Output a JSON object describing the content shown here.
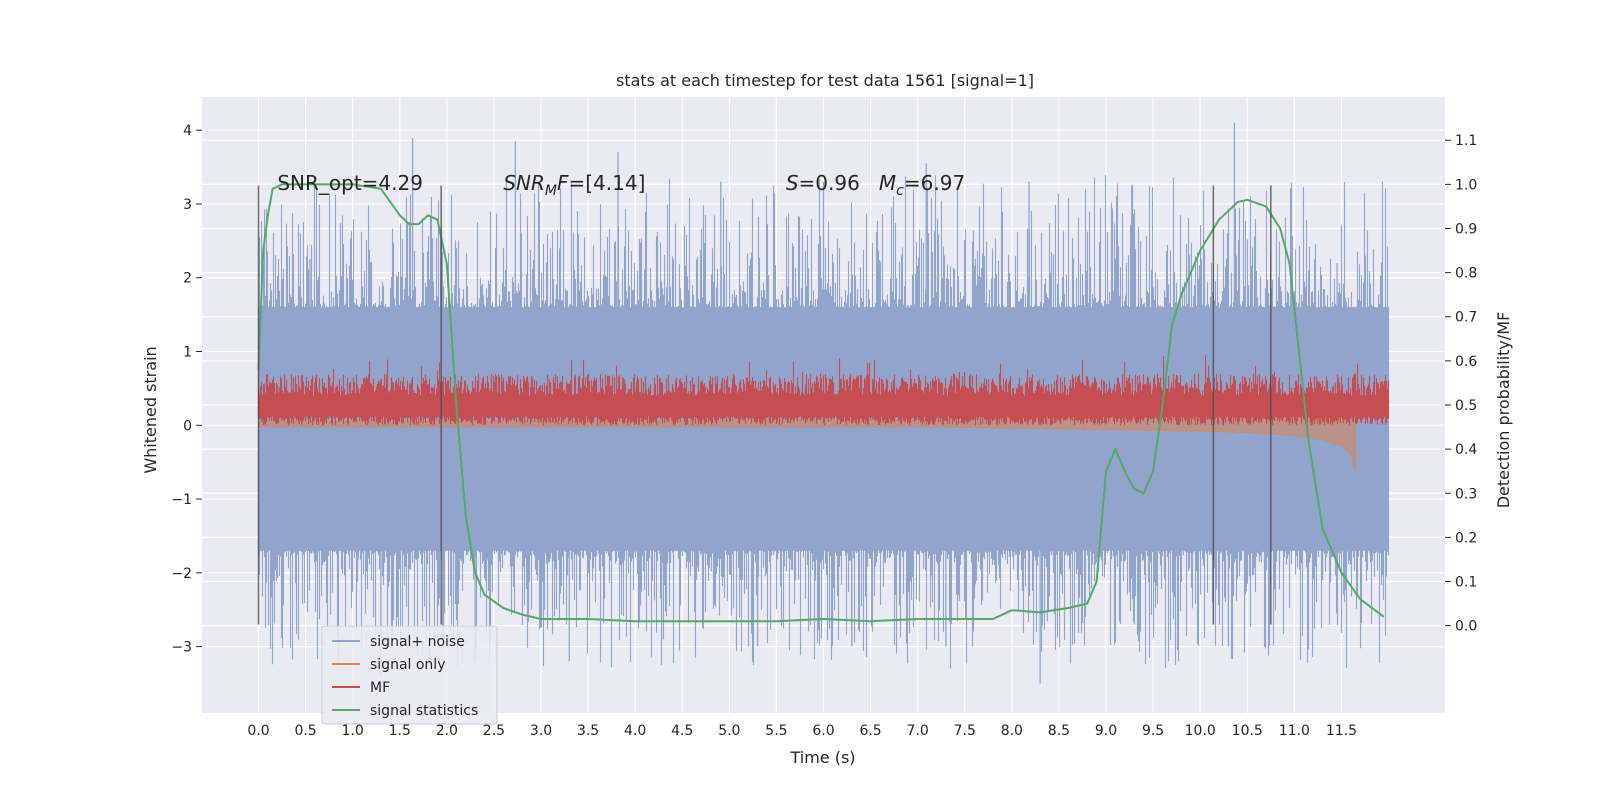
{
  "chart_data": {
    "type": "line",
    "title": "stats at each timestep for test data 1561 [signal=1]",
    "xlabel": "Time (s)",
    "ylabel": "Whitened strain",
    "y2label": "Detection probability/MF",
    "xlim": [
      -0.6,
      12.6
    ],
    "ylim": [
      -3.9,
      4.45
    ],
    "y2lim": [
      -0.198,
      1.198
    ],
    "x_ticks": [
      0.0,
      0.5,
      1.0,
      1.5,
      2.0,
      2.5,
      3.0,
      3.5,
      4.0,
      4.5,
      5.0,
      5.5,
      6.0,
      6.5,
      7.0,
      7.5,
      8.0,
      8.5,
      9.0,
      9.5,
      10.0,
      10.5,
      11.0,
      11.5
    ],
    "x_tick_labels": [
      "0.0",
      "0.5",
      "1.0",
      "1.5",
      "2.0",
      "2.5",
      "3.0",
      "3.5",
      "4.0",
      "4.5",
      "5.0",
      "5.5",
      "6.0",
      "6.5",
      "7.0",
      "7.5",
      "8.0",
      "8.5",
      "9.0",
      "9.5",
      "10.0",
      "10.5",
      "11.0",
      "11.5"
    ],
    "y_ticks": [
      -3,
      -2,
      -1,
      0,
      1,
      2,
      3,
      4
    ],
    "y_tick_labels": [
      "−3",
      "−2",
      "−1",
      "0",
      "1",
      "2",
      "3",
      "4"
    ],
    "y2_ticks": [
      0.0,
      0.1,
      0.2,
      0.3,
      0.4,
      0.5,
      0.6,
      0.7,
      0.8,
      0.9,
      1.0,
      1.1
    ],
    "y2_tick_labels": [
      "0.0",
      "0.1",
      "0.2",
      "0.3",
      "0.4",
      "0.5",
      "0.6",
      "0.7",
      "0.8",
      "0.9",
      "1.0",
      "1.1"
    ],
    "grid": true,
    "legend_position": "lower-left",
    "annotations": [
      {
        "text": "SNR_opt=4.29",
        "x": 0.2,
        "y": 3.3
      },
      {
        "text": "SNR_MF=[4.14]",
        "x": 2.6,
        "y": 3.3
      },
      {
        "text": "S=0.96   M_c=6.97",
        "x": 5.6,
        "y": 3.3
      }
    ],
    "vertical_lines": [
      {
        "x": 0.0,
        "y_range": [
          -2.7,
          3.25
        ]
      },
      {
        "x": 1.94,
        "y_range": [
          -2.7,
          3.25
        ]
      },
      {
        "x": 10.14,
        "y_range": [
          -2.7,
          3.25
        ]
      },
      {
        "x": 10.75,
        "y_range": [
          -2.7,
          3.25
        ]
      }
    ],
    "series": [
      {
        "name": "signal+ noise",
        "color": "#91a5cc",
        "axis": "left",
        "x_range": [
          0.0,
          12.0
        ],
        "envelope_upper": 1.6,
        "envelope_lower": -1.7,
        "peak_upper": [
          2.25,
          3.9,
          3.85,
          3.7,
          3.3,
          3.3,
          3.55,
          3.3,
          3.25,
          4.1,
          2.2
        ],
        "peak_lower": [
          -1.7,
          -3.4,
          -3.2,
          -3.2,
          -2.9,
          -3.0,
          -3.0,
          -3.0,
          -3.5,
          -2.7,
          -3.0,
          -2.1
        ]
      },
      {
        "name": "signal only",
        "color": "#dd8452",
        "axis": "left",
        "x": [
          0.0,
          7.0,
          8.0,
          9.0,
          10.0,
          10.5,
          11.0,
          11.3,
          11.5,
          11.6,
          11.65
        ],
        "upper": [
          0.05,
          0.08,
          0.1,
          0.12,
          0.15,
          0.18,
          0.22,
          0.28,
          0.35,
          0.45,
          0.05
        ],
        "lower": [
          -0.02,
          -0.02,
          -0.04,
          -0.06,
          -0.08,
          -0.1,
          -0.14,
          -0.2,
          -0.28,
          -0.4,
          -0.62
        ]
      },
      {
        "name": "MF",
        "color": "#c44e52",
        "axis": "left",
        "x_range": [
          0.0,
          12.0
        ],
        "baseline": 0.25,
        "envelope_upper": 0.55,
        "envelope_lower": 0.0,
        "peak_upper": 0.95
      },
      {
        "name": "signal statistics",
        "color": "#55a868",
        "axis": "right",
        "x": [
          0.0,
          0.05,
          0.1,
          0.15,
          0.25,
          0.5,
          1.0,
          1.3,
          1.5,
          1.6,
          1.7,
          1.8,
          1.9,
          2.0,
          2.1,
          2.2,
          2.3,
          2.4,
          2.6,
          2.8,
          3.0,
          3.5,
          4.0,
          5.0,
          5.5,
          6.0,
          6.5,
          7.0,
          7.5,
          7.8,
          8.0,
          8.3,
          8.6,
          8.8,
          8.9,
          9.0,
          9.1,
          9.2,
          9.3,
          9.4,
          9.5,
          9.6,
          9.7,
          9.8,
          10.0,
          10.2,
          10.4,
          10.5,
          10.7,
          10.85,
          10.95,
          11.05,
          11.15,
          11.3,
          11.5,
          11.7,
          11.95
        ],
        "y": [
          0.58,
          0.85,
          0.93,
          0.99,
          1.0,
          1.0,
          1.0,
          0.99,
          0.93,
          0.91,
          0.91,
          0.93,
          0.92,
          0.82,
          0.5,
          0.25,
          0.12,
          0.07,
          0.04,
          0.025,
          0.015,
          0.015,
          0.01,
          0.01,
          0.01,
          0.015,
          0.01,
          0.015,
          0.015,
          0.015,
          0.035,
          0.03,
          0.04,
          0.05,
          0.1,
          0.35,
          0.4,
          0.35,
          0.31,
          0.3,
          0.35,
          0.5,
          0.68,
          0.75,
          0.85,
          0.92,
          0.96,
          0.965,
          0.95,
          0.9,
          0.82,
          0.62,
          0.42,
          0.22,
          0.12,
          0.06,
          0.02
        ]
      }
    ]
  }
}
